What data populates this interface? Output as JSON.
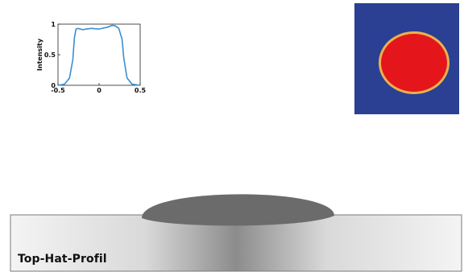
{
  "caption": "Top-Hat-Profil",
  "chart_data": {
    "type": "line",
    "ylabel": "Intensity",
    "xlabel": "",
    "xlim": [
      -0.5,
      0.5
    ],
    "ylim": [
      0,
      1
    ],
    "x_ticks": [
      "-0.5",
      "0",
      "0.5"
    ],
    "y_ticks": [
      "0",
      "0.5",
      "1"
    ],
    "series": [
      {
        "color": "#3a8fd0",
        "x": [
          -0.5,
          -0.42,
          -0.36,
          -0.32,
          -0.3,
          -0.28,
          -0.26,
          -0.2,
          -0.1,
          0.0,
          0.1,
          0.16,
          0.2,
          0.24,
          0.28,
          0.3,
          0.34,
          0.4,
          0.5
        ],
        "y": [
          0.0,
          0.02,
          0.12,
          0.42,
          0.78,
          0.92,
          0.93,
          0.91,
          0.93,
          0.92,
          0.95,
          0.98,
          0.97,
          0.93,
          0.75,
          0.45,
          0.12,
          0.02,
          0.0
        ]
      }
    ]
  },
  "colors": {
    "spot_background": "#2b3f93",
    "spot_fill": "#e4161b",
    "spot_ring": "#e9b24f",
    "droplet": "#6b6b6b",
    "substrate_edge": "#e8e8e8",
    "substrate_center": "#8a8a8a"
  }
}
